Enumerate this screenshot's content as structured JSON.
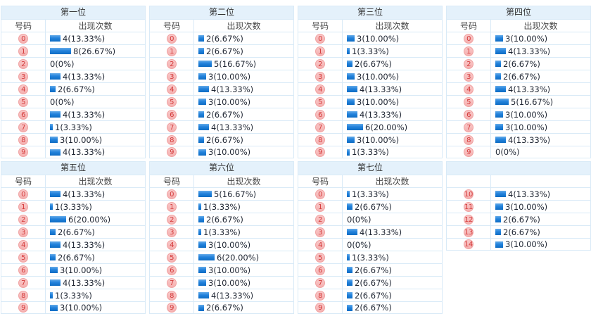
{
  "colors": {
    "title_band_bg": "#e4f1fb",
    "table_border": "#d9eaf7",
    "badge_bg": "#f5b0b0",
    "badge_bg_light": "#f9c8c8",
    "badge_border": "#f0a3a3",
    "badge_text": "#d43c3c",
    "bar_top": "#64abe9",
    "bar_mid": "#2383dc",
    "bar_bottom": "#0e6cc4",
    "label_text": "#1f2633",
    "header_text": "#474747",
    "title_text": "#333333",
    "page_bg": "#ffffff"
  },
  "chart_data": [
    {
      "type": "bar",
      "title": "第一位",
      "col_headers": [
        "号码",
        "出现次数"
      ],
      "categories": [
        "0",
        "1",
        "2",
        "3",
        "4",
        "5",
        "6",
        "7",
        "8",
        "9"
      ],
      "values": [
        4,
        8,
        0,
        4,
        2,
        0,
        4,
        1,
        3,
        4
      ],
      "labels": [
        "4(13.33%)",
        "8(26.67%)",
        "0(0%)",
        "4(13.33%)",
        "2(6.67%)",
        "0(0%)",
        "4(13.33%)",
        "1(3.33%)",
        "3(10.00%)",
        "4(13.33%)"
      ]
    },
    {
      "type": "bar",
      "title": "第二位",
      "col_headers": [
        "号码",
        "出现次数"
      ],
      "categories": [
        "0",
        "1",
        "2",
        "3",
        "4",
        "5",
        "6",
        "7",
        "8",
        "9"
      ],
      "values": [
        2,
        2,
        5,
        3,
        4,
        3,
        2,
        4,
        2,
        3
      ],
      "labels": [
        "2(6.67%)",
        "2(6.67%)",
        "5(16.67%)",
        "3(10.00%)",
        "4(13.33%)",
        "3(10.00%)",
        "2(6.67%)",
        "4(13.33%)",
        "2(6.67%)",
        "3(10.00%)"
      ]
    },
    {
      "type": "bar",
      "title": "第三位",
      "col_headers": [
        "号码",
        "出现次数"
      ],
      "categories": [
        "0",
        "1",
        "2",
        "3",
        "4",
        "5",
        "6",
        "7",
        "8",
        "9"
      ],
      "values": [
        3,
        1,
        2,
        3,
        4,
        3,
        4,
        6,
        3,
        1
      ],
      "labels": [
        "3(10.00%)",
        "1(3.33%)",
        "2(6.67%)",
        "3(10.00%)",
        "4(13.33%)",
        "3(10.00%)",
        "4(13.33%)",
        "6(20.00%)",
        "3(10.00%)",
        "1(3.33%)"
      ]
    },
    {
      "type": "bar",
      "title": "第四位",
      "col_headers": [
        "号码",
        "出现次数"
      ],
      "categories": [
        "0",
        "1",
        "2",
        "3",
        "4",
        "5",
        "6",
        "7",
        "8",
        "9"
      ],
      "values": [
        3,
        4,
        2,
        2,
        4,
        5,
        3,
        3,
        4,
        0
      ],
      "labels": [
        "3(10.00%)",
        "4(13.33%)",
        "2(6.67%)",
        "2(6.67%)",
        "4(13.33%)",
        "5(16.67%)",
        "3(10.00%)",
        "3(10.00%)",
        "4(13.33%)",
        "0(0%)"
      ]
    },
    {
      "type": "bar",
      "title": "第五位",
      "col_headers": [
        "号码",
        "出现次数"
      ],
      "categories": [
        "0",
        "1",
        "2",
        "3",
        "4",
        "5",
        "6",
        "7",
        "8",
        "9"
      ],
      "values": [
        4,
        1,
        6,
        2,
        4,
        2,
        3,
        4,
        1,
        3
      ],
      "labels": [
        "4(13.33%)",
        "1(3.33%)",
        "6(20.00%)",
        "2(6.67%)",
        "4(13.33%)",
        "2(6.67%)",
        "3(10.00%)",
        "4(13.33%)",
        "1(3.33%)",
        "3(10.00%)"
      ]
    },
    {
      "type": "bar",
      "title": "第六位",
      "col_headers": [
        "号码",
        "出现次数"
      ],
      "categories": [
        "0",
        "1",
        "2",
        "3",
        "4",
        "5",
        "6",
        "7",
        "8",
        "9"
      ],
      "values": [
        5,
        1,
        2,
        1,
        3,
        6,
        3,
        3,
        4,
        2
      ],
      "labels": [
        "5(16.67%)",
        "1(3.33%)",
        "2(6.67%)",
        "1(3.33%)",
        "3(10.00%)",
        "6(20.00%)",
        "3(10.00%)",
        "3(10.00%)",
        "4(13.33%)",
        "2(6.67%)"
      ]
    },
    {
      "type": "bar",
      "title": "第七位",
      "col_headers": [
        "号码",
        "出现次数"
      ],
      "categories": [
        "0",
        "1",
        "2",
        "3",
        "4",
        "5",
        "6",
        "7",
        "8",
        "9"
      ],
      "values": [
        1,
        2,
        0,
        4,
        0,
        1,
        2,
        2,
        2,
        2
      ],
      "labels": [
        "1(3.33%)",
        "2(6.67%)",
        "0(0%)",
        "4(13.33%)",
        "0(0%)",
        "1(3.33%)",
        "2(6.67%)",
        "2(6.67%)",
        "2(6.67%)",
        "2(6.67%)"
      ]
    },
    {
      "type": "bar",
      "title": "",
      "col_headers": [
        "",
        ""
      ],
      "categories": [
        "10",
        "11",
        "12",
        "13",
        "14"
      ],
      "values": [
        4,
        3,
        2,
        2,
        3
      ],
      "labels": [
        "4(13.33%)",
        "3(10.00%)",
        "2(6.67%)",
        "2(6.67%)",
        "3(10.00%)"
      ]
    }
  ]
}
